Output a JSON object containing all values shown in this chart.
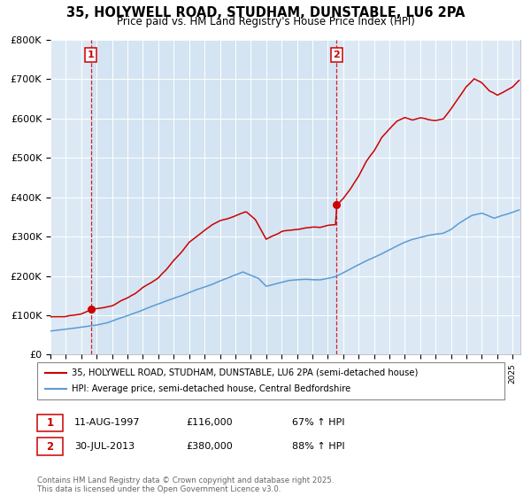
{
  "title": "35, HOLYWELL ROAD, STUDHAM, DUNSTABLE, LU6 2PA",
  "subtitle": "Price paid vs. HM Land Registry's House Price Index (HPI)",
  "legend_line1": "35, HOLYWELL ROAD, STUDHAM, DUNSTABLE, LU6 2PA (semi-detached house)",
  "legend_line2": "HPI: Average price, semi-detached house, Central Bedfordshire",
  "annotation1_date": "11-AUG-1997",
  "annotation1_price": "£116,000",
  "annotation1_hpi": "67% ↑ HPI",
  "annotation2_date": "30-JUL-2013",
  "annotation2_price": "£380,000",
  "annotation2_hpi": "88% ↑ HPI",
  "copyright_text": "Contains HM Land Registry data © Crown copyright and database right 2025.\nThis data is licensed under the Open Government Licence v3.0.",
  "hpi_color": "#5b9bd5",
  "price_color": "#cc0000",
  "bg_color": "#dce9f5",
  "shade_color": "#d0e4f5",
  "vline_color": "#cc0000",
  "vline1_x": 1997.62,
  "vline2_x": 2013.58,
  "dot1_x": 1997.62,
  "dot1_y": 116000,
  "dot2_x": 2013.58,
  "dot2_y": 380000,
  "ylim": [
    0,
    800000
  ],
  "xlim_start": 1995.0,
  "xlim_end": 2025.5
}
